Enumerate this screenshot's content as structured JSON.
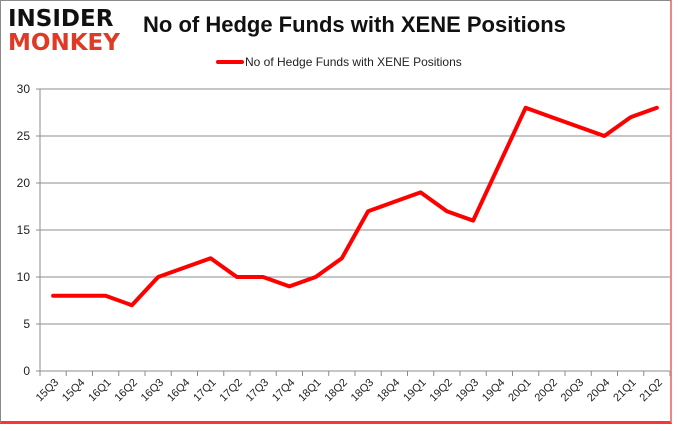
{
  "logo": {
    "line1": "INSIDER",
    "line2": "MONKEY"
  },
  "chart_data": {
    "type": "line",
    "title": "No of Hedge Funds with XENE Positions",
    "xlabel": "",
    "ylabel": "",
    "ylim": [
      0,
      30
    ],
    "yticks": [
      0,
      5,
      10,
      15,
      20,
      25,
      30
    ],
    "grid": true,
    "legend_position": "top",
    "categories": [
      "15Q3",
      "15Q4",
      "16Q1",
      "16Q2",
      "16Q3",
      "16Q4",
      "17Q1",
      "17Q2",
      "17Q3",
      "17Q4",
      "18Q1",
      "18Q2",
      "18Q3",
      "18Q4",
      "19Q1",
      "19Q2",
      "19Q3",
      "19Q4",
      "20Q1",
      "20Q2",
      "20Q3",
      "20Q4",
      "21Q1",
      "21Q2"
    ],
    "series": [
      {
        "name": "No of Hedge Funds with XENE Positions",
        "color": "#ff0000",
        "values": [
          8,
          8,
          8,
          7,
          10,
          11,
          12,
          10,
          10,
          9,
          10,
          12,
          17,
          18,
          19,
          17,
          16,
          22,
          28,
          27,
          26,
          25,
          27,
          28
        ]
      }
    ]
  }
}
